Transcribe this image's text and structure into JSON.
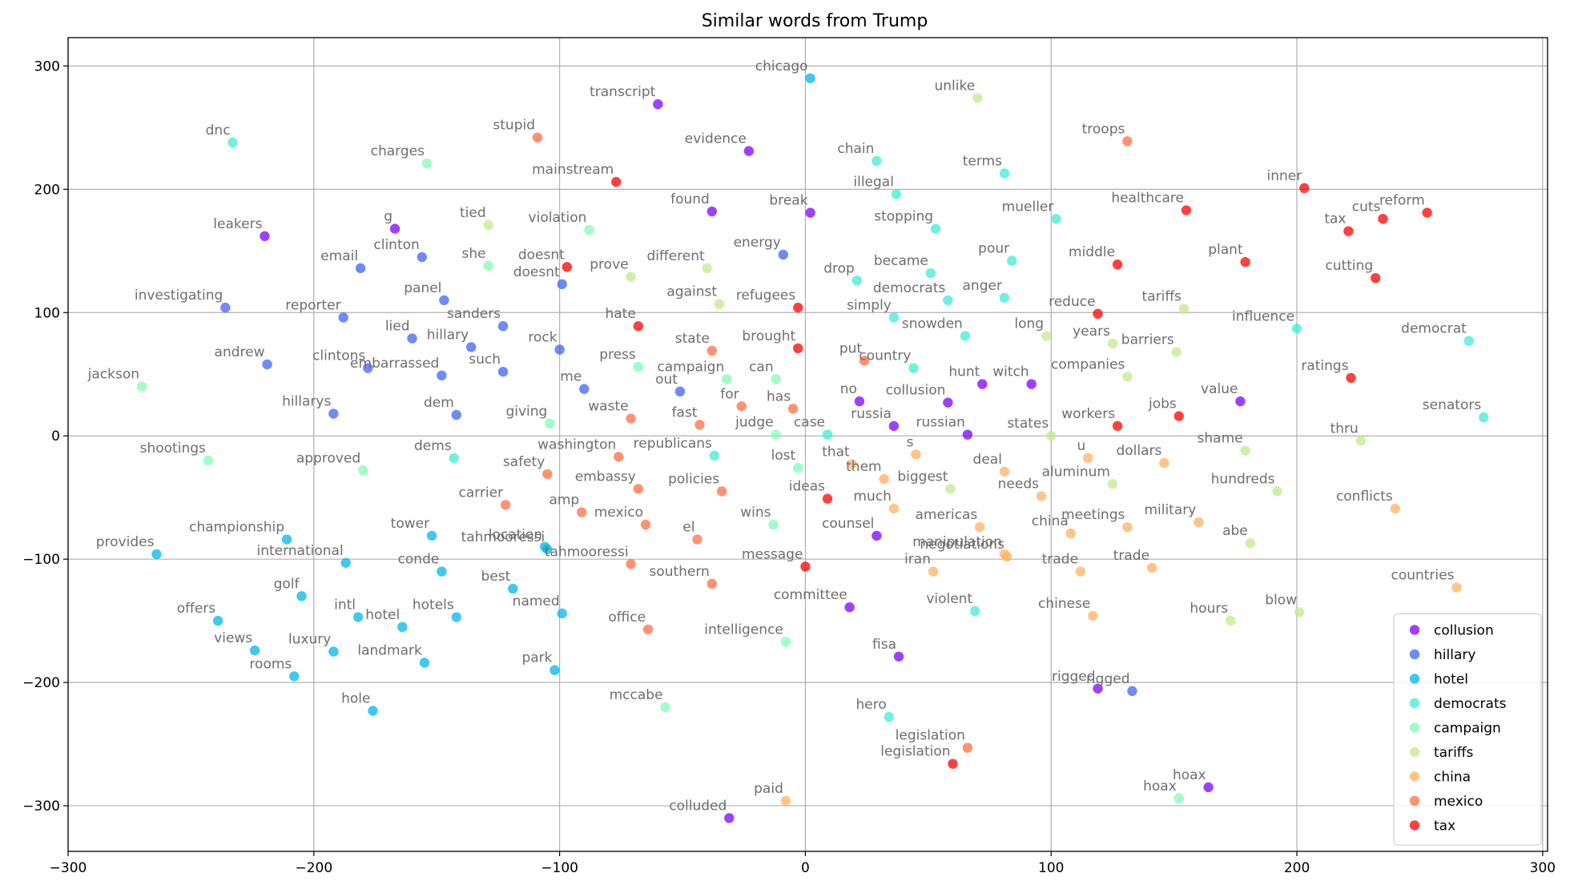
{
  "chart_data": {
    "type": "scatter",
    "title": "Similar words from Trump",
    "xlabel": "",
    "ylabel": "",
    "xlim": [
      -300,
      302
    ],
    "ylim": [
      -337,
      323
    ],
    "xticks": [
      -300,
      -200,
      -100,
      0,
      100,
      200,
      300
    ],
    "yticks": [
      -300,
      -200,
      -100,
      0,
      100,
      200,
      300
    ],
    "grid": true,
    "legend_position": "lower-right",
    "series": [
      {
        "name": "collusion",
        "color": "#8000ff",
        "points": [
          {
            "x": -220,
            "y": 162,
            "label": "leakers"
          },
          {
            "x": -167,
            "y": 168,
            "label": "g"
          },
          {
            "x": -60,
            "y": 269,
            "label": "transcript"
          },
          {
            "x": -23,
            "y": 231,
            "label": "evidence"
          },
          {
            "x": -38,
            "y": 182,
            "label": "found"
          },
          {
            "x": 2,
            "y": 181,
            "label": "break"
          },
          {
            "x": 22,
            "y": 28,
            "label": "no"
          },
          {
            "x": 36,
            "y": 8,
            "label": "russia"
          },
          {
            "x": 58,
            "y": 27,
            "label": "collusion"
          },
          {
            "x": 66,
            "y": 1,
            "label": "russian"
          },
          {
            "x": 72,
            "y": 42,
            "label": "hunt"
          },
          {
            "x": 92,
            "y": 42,
            "label": "witch"
          },
          {
            "x": 177,
            "y": 28,
            "label": "value"
          },
          {
            "x": 29,
            "y": -81,
            "label": "counsel"
          },
          {
            "x": 18,
            "y": -139,
            "label": "committee"
          },
          {
            "x": 38,
            "y": -179,
            "label": "fisa"
          },
          {
            "x": 119,
            "y": -205,
            "label": "rigged"
          },
          {
            "x": 164,
            "y": -285,
            "label": "hoax"
          },
          {
            "x": -31,
            "y": -310,
            "label": "colluded"
          }
        ]
      },
      {
        "name": "hillary",
        "color": "#4062fa",
        "points": [
          {
            "x": -236,
            "y": 104,
            "label": "investigating"
          },
          {
            "x": -181,
            "y": 136,
            "label": "email"
          },
          {
            "x": -156,
            "y": 145,
            "label": "clinton"
          },
          {
            "x": -188,
            "y": 96,
            "label": "reporter"
          },
          {
            "x": -147,
            "y": 110,
            "label": "panel"
          },
          {
            "x": -219,
            "y": 58,
            "label": "andrew"
          },
          {
            "x": -160,
            "y": 79,
            "label": "lied"
          },
          {
            "x": -136,
            "y": 72,
            "label": "hillary"
          },
          {
            "x": -123,
            "y": 89,
            "label": "sanders"
          },
          {
            "x": -178,
            "y": 55,
            "label": "clintons"
          },
          {
            "x": -148,
            "y": 49,
            "label": "embarrassed"
          },
          {
            "x": -123,
            "y": 52,
            "label": "such"
          },
          {
            "x": -192,
            "y": 18,
            "label": "hillarys"
          },
          {
            "x": -142,
            "y": 17,
            "label": "dem"
          },
          {
            "x": -99,
            "y": 123,
            "label": "doesnt"
          },
          {
            "x": -100,
            "y": 70,
            "label": "rock"
          },
          {
            "x": -90,
            "y": 38,
            "label": "me"
          },
          {
            "x": -51,
            "y": 36,
            "label": "out"
          },
          {
            "x": -9,
            "y": 147,
            "label": "energy"
          },
          {
            "x": 133,
            "y": -207,
            "label": "rigged"
          }
        ]
      },
      {
        "name": "hotel",
        "color": "#00b5eb",
        "points": [
          {
            "x": 2,
            "y": 290,
            "label": "chicago"
          },
          {
            "x": -264,
            "y": -96,
            "label": "provides"
          },
          {
            "x": -211,
            "y": -84,
            "label": "championship"
          },
          {
            "x": -187,
            "y": -103,
            "label": "international"
          },
          {
            "x": -152,
            "y": -81,
            "label": "tower"
          },
          {
            "x": -148,
            "y": -110,
            "label": "conde"
          },
          {
            "x": -106,
            "y": -90,
            "label": "location"
          },
          {
            "x": -105,
            "y": -92,
            "label": "tahmooressi"
          },
          {
            "x": -119,
            "y": -124,
            "label": "best"
          },
          {
            "x": -205,
            "y": -130,
            "label": "golf"
          },
          {
            "x": -182,
            "y": -147,
            "label": "intl"
          },
          {
            "x": -164,
            "y": -155,
            "label": "hotel"
          },
          {
            "x": -142,
            "y": -147,
            "label": "hotels"
          },
          {
            "x": -99,
            "y": -144,
            "label": "named"
          },
          {
            "x": -239,
            "y": -150,
            "label": "offers"
          },
          {
            "x": -224,
            "y": -174,
            "label": "views"
          },
          {
            "x": -192,
            "y": -175,
            "label": "luxury"
          },
          {
            "x": -155,
            "y": -184,
            "label": "landmark"
          },
          {
            "x": -102,
            "y": -190,
            "label": "park"
          },
          {
            "x": -208,
            "y": -195,
            "label": "rooms"
          },
          {
            "x": -176,
            "y": -223,
            "label": "hole"
          }
        ]
      },
      {
        "name": "democrats",
        "color": "#40ecd4",
        "points": [
          {
            "x": 29,
            "y": 223,
            "label": "chain"
          },
          {
            "x": 37,
            "y": 196,
            "label": "illegal"
          },
          {
            "x": 81,
            "y": 213,
            "label": "terms"
          },
          {
            "x": 53,
            "y": 168,
            "label": "stopping"
          },
          {
            "x": 102,
            "y": 176,
            "label": "mueller"
          },
          {
            "x": 21,
            "y": 126,
            "label": "drop"
          },
          {
            "x": 51,
            "y": 132,
            "label": "became"
          },
          {
            "x": 84,
            "y": 142,
            "label": "pour"
          },
          {
            "x": 58,
            "y": 110,
            "label": "democrats"
          },
          {
            "x": 81,
            "y": 112,
            "label": "anger"
          },
          {
            "x": 36,
            "y": 96,
            "label": "simply"
          },
          {
            "x": 65,
            "y": 81,
            "label": "snowden"
          },
          {
            "x": 44,
            "y": 55,
            "label": "country"
          },
          {
            "x": 200,
            "y": 87,
            "label": "influence"
          },
          {
            "x": 270,
            "y": 77,
            "label": "democrat"
          },
          {
            "x": 276,
            "y": 15,
            "label": "senators"
          },
          {
            "x": 9,
            "y": 1,
            "label": "case"
          },
          {
            "x": -37,
            "y": -16,
            "label": "republicans"
          },
          {
            "x": -143,
            "y": -18,
            "label": "dems"
          },
          {
            "x": 69,
            "y": -142,
            "label": "violent"
          },
          {
            "x": 34,
            "y": -228,
            "label": "hero"
          },
          {
            "x": -233,
            "y": 238,
            "label": "dnc"
          }
        ]
      },
      {
        "name": "campaign",
        "color": "#80feb3",
        "points": [
          {
            "x": -154,
            "y": 221,
            "label": "charges"
          },
          {
            "x": -129,
            "y": 138,
            "label": "she"
          },
          {
            "x": -88,
            "y": 167,
            "label": "violation"
          },
          {
            "x": -270,
            "y": 40,
            "label": "jackson"
          },
          {
            "x": -68,
            "y": 56,
            "label": "press"
          },
          {
            "x": -32,
            "y": 46,
            "label": "campaign"
          },
          {
            "x": -12,
            "y": 46,
            "label": "can"
          },
          {
            "x": -104,
            "y": 10,
            "label": "giving"
          },
          {
            "x": -12,
            "y": 1,
            "label": "judge"
          },
          {
            "x": -243,
            "y": -20,
            "label": "shootings"
          },
          {
            "x": -180,
            "y": -28,
            "label": "approved"
          },
          {
            "x": -3,
            "y": -26,
            "label": "lost"
          },
          {
            "x": -13,
            "y": -72,
            "label": "wins"
          },
          {
            "x": -8,
            "y": -167,
            "label": "intelligence"
          },
          {
            "x": -57,
            "y": -220,
            "label": "mccabe"
          },
          {
            "x": 152,
            "y": -294,
            "label": "hoax"
          }
        ]
      },
      {
        "name": "tariffs",
        "color": "#c0eb8d",
        "points": [
          {
            "x": 70,
            "y": 274,
            "label": "unlike"
          },
          {
            "x": -129,
            "y": 171,
            "label": "tied"
          },
          {
            "x": -71,
            "y": 129,
            "label": "prove"
          },
          {
            "x": -40,
            "y": 136,
            "label": "different"
          },
          {
            "x": -35,
            "y": 107,
            "label": "against"
          },
          {
            "x": 154,
            "y": 103,
            "label": "tariffs"
          },
          {
            "x": 98,
            "y": 81,
            "label": "long"
          },
          {
            "x": 125,
            "y": 75,
            "label": "years"
          },
          {
            "x": 151,
            "y": 68,
            "label": "barriers"
          },
          {
            "x": 131,
            "y": 48,
            "label": "companies"
          },
          {
            "x": 100,
            "y": 0,
            "label": "states"
          },
          {
            "x": 179,
            "y": -12,
            "label": "shame"
          },
          {
            "x": 226,
            "y": -4,
            "label": "thru"
          },
          {
            "x": 59,
            "y": -43,
            "label": "biggest"
          },
          {
            "x": 125,
            "y": -39,
            "label": "aluminum"
          },
          {
            "x": 192,
            "y": -45,
            "label": "hundreds"
          },
          {
            "x": 181,
            "y": -87,
            "label": "abe"
          },
          {
            "x": 173,
            "y": -150,
            "label": "hours"
          },
          {
            "x": 201,
            "y": -143,
            "label": "blow"
          }
        ]
      },
      {
        "name": "china",
        "color": "#ffb260",
        "points": [
          {
            "x": 19,
            "y": -23,
            "label": "that"
          },
          {
            "x": 32,
            "y": -35,
            "label": "them"
          },
          {
            "x": 45,
            "y": -15,
            "label": "s"
          },
          {
            "x": 36,
            "y": -59,
            "label": "much"
          },
          {
            "x": 81,
            "y": -29,
            "label": "deal"
          },
          {
            "x": 115,
            "y": -18,
            "label": "u"
          },
          {
            "x": 146,
            "y": -22,
            "label": "dollars"
          },
          {
            "x": 96,
            "y": -49,
            "label": "needs"
          },
          {
            "x": 71,
            "y": -74,
            "label": "americas"
          },
          {
            "x": 81,
            "y": -96,
            "label": "manipulation"
          },
          {
            "x": 82,
            "y": -98,
            "label": "negotiations"
          },
          {
            "x": 108,
            "y": -79,
            "label": "china"
          },
          {
            "x": 131,
            "y": -74,
            "label": "meetings"
          },
          {
            "x": 160,
            "y": -70,
            "label": "military"
          },
          {
            "x": 52,
            "y": -110,
            "label": "iran"
          },
          {
            "x": 112,
            "y": -110,
            "label": "trade"
          },
          {
            "x": 141,
            "y": -107,
            "label": "trade"
          },
          {
            "x": 117,
            "y": -146,
            "label": "chinese"
          },
          {
            "x": 240,
            "y": -59,
            "label": "conflicts"
          },
          {
            "x": 265,
            "y": -123,
            "label": "countries"
          },
          {
            "x": -8,
            "y": -296,
            "label": "paid"
          }
        ]
      },
      {
        "name": "mexico",
        "color": "#ff6e40",
        "points": [
          {
            "x": -109,
            "y": 242,
            "label": "stupid"
          },
          {
            "x": 131,
            "y": 239,
            "label": "troops"
          },
          {
            "x": -38,
            "y": 69,
            "label": "state"
          },
          {
            "x": 24,
            "y": 61,
            "label": "put"
          },
          {
            "x": -26,
            "y": 24,
            "label": "for"
          },
          {
            "x": -5,
            "y": 22,
            "label": "has"
          },
          {
            "x": -71,
            "y": 14,
            "label": "waste"
          },
          {
            "x": -43,
            "y": 9,
            "label": "fast"
          },
          {
            "x": -76,
            "y": -17,
            "label": "washington"
          },
          {
            "x": -105,
            "y": -31,
            "label": "safety"
          },
          {
            "x": -68,
            "y": -43,
            "label": "embassy"
          },
          {
            "x": -34,
            "y": -45,
            "label": "policies"
          },
          {
            "x": -122,
            "y": -56,
            "label": "carrier"
          },
          {
            "x": -91,
            "y": -62,
            "label": "amp"
          },
          {
            "x": -65,
            "y": -72,
            "label": "mexico"
          },
          {
            "x": -44,
            "y": -84,
            "label": "el"
          },
          {
            "x": -71,
            "y": -104,
            "label": "tahmooressi"
          },
          {
            "x": -38,
            "y": -120,
            "label": "southern"
          },
          {
            "x": -64,
            "y": -157,
            "label": "office"
          },
          {
            "x": 66,
            "y": -253,
            "label": "legislation"
          }
        ]
      },
      {
        "name": "tax",
        "color": "#ff0000",
        "points": [
          {
            "x": -77,
            "y": 206,
            "label": "mainstream"
          },
          {
            "x": -97,
            "y": 137,
            "label": "doesnt"
          },
          {
            "x": -68,
            "y": 89,
            "label": "hate"
          },
          {
            "x": -3,
            "y": 104,
            "label": "refugees"
          },
          {
            "x": -3,
            "y": 71,
            "label": "brought"
          },
          {
            "x": 155,
            "y": 183,
            "label": "healthcare"
          },
          {
            "x": 203,
            "y": 201,
            "label": "inner"
          },
          {
            "x": 221,
            "y": 166,
            "label": "tax"
          },
          {
            "x": 235,
            "y": 176,
            "label": "cuts"
          },
          {
            "x": 253,
            "y": 181,
            "label": "reform"
          },
          {
            "x": 127,
            "y": 139,
            "label": "middle"
          },
          {
            "x": 179,
            "y": 141,
            "label": "plant"
          },
          {
            "x": 232,
            "y": 128,
            "label": "cutting"
          },
          {
            "x": 119,
            "y": 99,
            "label": "reduce"
          },
          {
            "x": 222,
            "y": 47,
            "label": "ratings"
          },
          {
            "x": 152,
            "y": 16,
            "label": "jobs"
          },
          {
            "x": 127,
            "y": 8,
            "label": "workers"
          },
          {
            "x": 9,
            "y": -51,
            "label": "ideas"
          },
          {
            "x": 0,
            "y": -106,
            "label": "message"
          },
          {
            "x": 60,
            "y": -266,
            "label": "legislation"
          }
        ]
      }
    ]
  }
}
